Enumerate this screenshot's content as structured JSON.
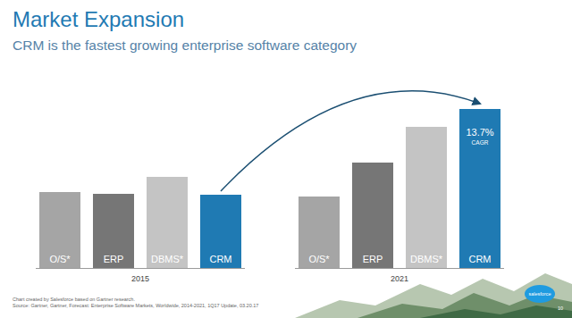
{
  "chart_data": {
    "type": "bar",
    "title": "Market Expansion",
    "subtitle": "CRM is the fastest growing enterprise software category",
    "categories": [
      "O/S*",
      "ERP",
      "DBMS*",
      "CRM"
    ],
    "colors": [
      "#a5a5a5",
      "#767676",
      "#c4c4c4",
      "#1f7ab3"
    ],
    "series": [
      {
        "name": "2015",
        "values": [
          85,
          83,
          102,
          82
        ]
      },
      {
        "name": "2021",
        "values": [
          80,
          118,
          158,
          178
        ]
      }
    ],
    "ylim": [
      0,
      180
    ],
    "tick_labels": false,
    "grid": false,
    "annotations": [
      "13.7%",
      "CAGR"
    ],
    "notes": [
      "Chart created by Salesforce based on Gartner research.",
      "Source: Gartner, Gartner, Forecast: Enterprise Software Markets, Worldwide, 2014-2021, 1Q17 Update, 03.20.17"
    ],
    "logo": "salesforce",
    "page": "10"
  }
}
